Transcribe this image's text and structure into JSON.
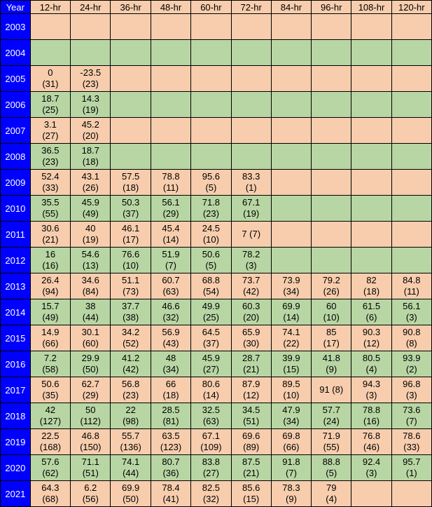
{
  "colors": {
    "year_bg": "#0000ff",
    "year_fg": "#ffffff",
    "peach": "#f7cdad",
    "green": "#b8d6a4",
    "border": "#000000"
  },
  "yearHeaderLabel": "Year",
  "columns": [
    "12-hr",
    "24-hr",
    "36-hr",
    "48-hr",
    "60-hr",
    "72-hr",
    "84-hr",
    "96-hr",
    "108-hr",
    "120-hr"
  ],
  "headerRowColor": "peach",
  "rows": [
    {
      "year": "2003",
      "color": "peach",
      "cells": [
        null,
        null,
        null,
        null,
        null,
        null,
        null,
        null,
        null,
        null
      ]
    },
    {
      "year": "2004",
      "color": "green",
      "cells": [
        null,
        null,
        null,
        null,
        null,
        null,
        null,
        null,
        null,
        null
      ]
    },
    {
      "year": "2005",
      "color": "peach",
      "cells": [
        {
          "v": "0",
          "n": "31"
        },
        {
          "v": "-23.5",
          "n": "23"
        },
        null,
        null,
        null,
        null,
        null,
        null,
        null,
        null
      ]
    },
    {
      "year": "2006",
      "color": "green",
      "cells": [
        {
          "v": "18.7",
          "n": "25"
        },
        {
          "v": "14.3",
          "n": "19"
        },
        null,
        null,
        null,
        null,
        null,
        null,
        null,
        null
      ]
    },
    {
      "year": "2007",
      "color": "peach",
      "cells": [
        {
          "v": "3.1",
          "n": "27"
        },
        {
          "v": "45.2",
          "n": "20"
        },
        null,
        null,
        null,
        null,
        null,
        null,
        null,
        null
      ]
    },
    {
      "year": "2008",
      "color": "green",
      "cells": [
        {
          "v": "36.5",
          "n": "23"
        },
        {
          "v": "18.7",
          "n": "18"
        },
        null,
        null,
        null,
        null,
        null,
        null,
        null,
        null
      ]
    },
    {
      "year": "2009",
      "color": "peach",
      "cells": [
        {
          "v": "52.4",
          "n": "33"
        },
        {
          "v": "43.1",
          "n": "26"
        },
        {
          "v": "57.5",
          "n": "18"
        },
        {
          "v": "78.8",
          "n": "11"
        },
        {
          "v": "95.6",
          "n": "5"
        },
        {
          "v": "83.3",
          "n": "1"
        },
        null,
        null,
        null,
        null
      ]
    },
    {
      "year": "2010",
      "color": "green",
      "cells": [
        {
          "v": "35.5",
          "n": "55"
        },
        {
          "v": "45.9",
          "n": "49"
        },
        {
          "v": "50.3",
          "n": "37"
        },
        {
          "v": "56.1",
          "n": "29"
        },
        {
          "v": "71.8",
          "n": "23"
        },
        {
          "v": "67.1",
          "n": "19"
        },
        null,
        null,
        null,
        null
      ]
    },
    {
      "year": "2011",
      "color": "peach",
      "cells": [
        {
          "v": "30.6",
          "n": "21"
        },
        {
          "v": "40",
          "n": "19"
        },
        {
          "v": "46.1",
          "n": "17"
        },
        {
          "v": "45.4",
          "n": "14"
        },
        {
          "v": "24.5",
          "n": "10"
        },
        {
          "v": "7",
          "n": "7",
          "inline": true
        },
        null,
        null,
        null,
        null
      ]
    },
    {
      "year": "2012",
      "color": "green",
      "cells": [
        {
          "v": "16",
          "n": "16"
        },
        {
          "v": "54.6",
          "n": "13"
        },
        {
          "v": "76.6",
          "n": "10"
        },
        {
          "v": "51.9",
          "n": "7"
        },
        {
          "v": "50.6",
          "n": "5"
        },
        {
          "v": "78.2",
          "n": "3"
        },
        null,
        null,
        null,
        null
      ]
    },
    {
      "year": "2013",
      "color": "peach",
      "cells": [
        {
          "v": "26.4",
          "n": "94"
        },
        {
          "v": "34.6",
          "n": "84"
        },
        {
          "v": "51.1",
          "n": "73"
        },
        {
          "v": "60.7",
          "n": "63"
        },
        {
          "v": "68.8",
          "n": "54"
        },
        {
          "v": "73.7",
          "n": "42"
        },
        {
          "v": "73.9",
          "n": "34"
        },
        {
          "v": "79.2",
          "n": "26"
        },
        {
          "v": "82",
          "n": "18"
        },
        {
          "v": "84.8",
          "n": "11"
        }
      ]
    },
    {
      "year": "2014",
      "color": "green",
      "cells": [
        {
          "v": "15.7",
          "n": "49"
        },
        {
          "v": "38",
          "n": "44"
        },
        {
          "v": "37.7",
          "n": "38"
        },
        {
          "v": "46.6",
          "n": "32"
        },
        {
          "v": "49.9",
          "n": "25"
        },
        {
          "v": "60.3",
          "n": "20"
        },
        {
          "v": "69.9",
          "n": "14"
        },
        {
          "v": "60",
          "n": "10"
        },
        {
          "v": "61.5",
          "n": "6"
        },
        {
          "v": "56.1",
          "n": "3"
        }
      ]
    },
    {
      "year": "2015",
      "color": "peach",
      "cells": [
        {
          "v": "14.9",
          "n": "66"
        },
        {
          "v": "30.1",
          "n": "60"
        },
        {
          "v": "34.2",
          "n": "52"
        },
        {
          "v": "56.9",
          "n": "43"
        },
        {
          "v": "64.5",
          "n": "37"
        },
        {
          "v": "65.9",
          "n": "30"
        },
        {
          "v": "74.1",
          "n": "22"
        },
        {
          "v": "85",
          "n": "17"
        },
        {
          "v": "90.3",
          "n": "12"
        },
        {
          "v": "90.8",
          "n": "8"
        }
      ]
    },
    {
      "year": "2016",
      "color": "green",
      "cells": [
        {
          "v": "7.2",
          "n": "58"
        },
        {
          "v": "29.9",
          "n": "50"
        },
        {
          "v": "41.2",
          "n": "42"
        },
        {
          "v": "48",
          "n": "34"
        },
        {
          "v": "45.9",
          "n": "27"
        },
        {
          "v": "28.7",
          "n": "21"
        },
        {
          "v": "39.9",
          "n": "15"
        },
        {
          "v": "41.8",
          "n": "9"
        },
        {
          "v": "80.5",
          "n": "4"
        },
        {
          "v": "93.9",
          "n": "2"
        }
      ]
    },
    {
      "year": "2017",
      "color": "peach",
      "cells": [
        {
          "v": "50.6",
          "n": "35"
        },
        {
          "v": "62.7",
          "n": "29"
        },
        {
          "v": "56.8",
          "n": "23"
        },
        {
          "v": "66",
          "n": "18"
        },
        {
          "v": "80.6",
          "n": "14"
        },
        {
          "v": "87.9",
          "n": "12"
        },
        {
          "v": "89.5",
          "n": "10"
        },
        {
          "v": "91",
          "n": "8",
          "inline": true
        },
        {
          "v": "94.3",
          "n": "3"
        },
        {
          "v": "96.8",
          "n": "3"
        }
      ]
    },
    {
      "year": "2018",
      "color": "green",
      "cells": [
        {
          "v": "42",
          "n": "127"
        },
        {
          "v": "50",
          "n": "112"
        },
        {
          "v": "22",
          "n": "98"
        },
        {
          "v": "28.5",
          "n": "81"
        },
        {
          "v": "32.5",
          "n": "63"
        },
        {
          "v": "34.5",
          "n": "51"
        },
        {
          "v": "47.9",
          "n": "34"
        },
        {
          "v": "57.7",
          "n": "24"
        },
        {
          "v": "78.8",
          "n": "16"
        },
        {
          "v": "73.6",
          "n": "7"
        }
      ]
    },
    {
      "year": "2019",
      "color": "peach",
      "cells": [
        {
          "v": "22.5",
          "n": "168"
        },
        {
          "v": "46.8",
          "n": "150"
        },
        {
          "v": "55.7",
          "n": "136"
        },
        {
          "v": "63.5",
          "n": "123"
        },
        {
          "v": "67.1",
          "n": "109"
        },
        {
          "v": "69.6",
          "n": "89"
        },
        {
          "v": "69.8",
          "n": "66"
        },
        {
          "v": "71.9",
          "n": "55"
        },
        {
          "v": "76.8",
          "n": "46"
        },
        {
          "v": "78.6",
          "n": "33"
        }
      ]
    },
    {
      "year": "2020",
      "color": "green",
      "cells": [
        {
          "v": "57.6",
          "n": "62"
        },
        {
          "v": "71.1",
          "n": "51"
        },
        {
          "v": "74.1",
          "n": "44"
        },
        {
          "v": "80.7",
          "n": "36"
        },
        {
          "v": "83.8",
          "n": "27"
        },
        {
          "v": "87.5",
          "n": "21"
        },
        {
          "v": "91.8",
          "n": "7"
        },
        {
          "v": "88.8",
          "n": "5"
        },
        {
          "v": "92.4",
          "n": "3"
        },
        {
          "v": "95.7",
          "n": "1"
        }
      ]
    },
    {
      "year": "2021",
      "color": "peach",
      "cells": [
        {
          "v": "64.3",
          "n": "68"
        },
        {
          "v": "6.2",
          "n": "56"
        },
        {
          "v": "69.9",
          "n": "50"
        },
        {
          "v": "78.4",
          "n": "41"
        },
        {
          "v": "82.5",
          "n": "32"
        },
        {
          "v": "85.6",
          "n": "15"
        },
        {
          "v": "78.3",
          "n": "9"
        },
        {
          "v": "79",
          "n": "4"
        },
        null,
        null
      ]
    }
  ]
}
